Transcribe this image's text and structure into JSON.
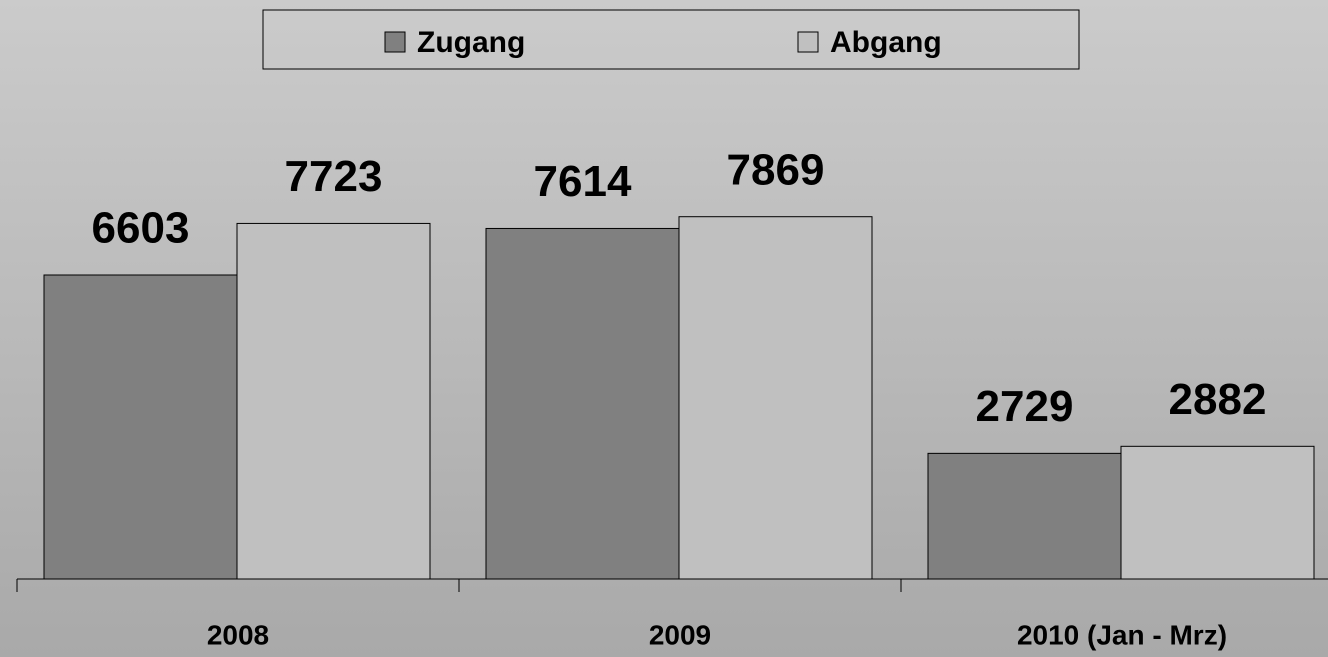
{
  "chart_data": {
    "type": "bar",
    "categories": [
      "2008",
      "2009",
      "2010 (Jan - Mrz)"
    ],
    "series": [
      {
        "name": "Zugang",
        "color": "#808080",
        "values": [
          6603,
          7614,
          2729
        ]
      },
      {
        "name": "Abgang",
        "color": "#c0c0c0",
        "values": [
          7723,
          7869,
          2882
        ]
      }
    ],
    "legend": "top"
  }
}
